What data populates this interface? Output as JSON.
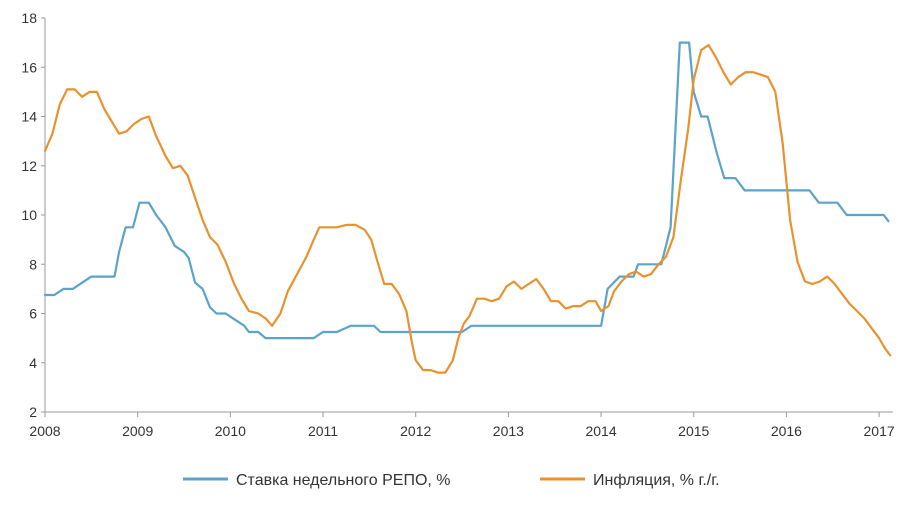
{
  "chart_data": {
    "type": "line",
    "title": "",
    "xlabel": "",
    "ylabel": "",
    "xlim": [
      2008,
      2017.15
    ],
    "ylim": [
      2,
      18
    ],
    "xticks": [
      "2008",
      "2009",
      "2010",
      "2011",
      "2012",
      "2013",
      "2014",
      "2015",
      "2016",
      "2017"
    ],
    "yticks": [
      "2",
      "4",
      "6",
      "8",
      "10",
      "12",
      "14",
      "16",
      "18"
    ],
    "grid": false,
    "legend_position": "bottom",
    "series": [
      {
        "name": "Ставка недельного РЕПО, %",
        "color": "#5ba3c9",
        "points": [
          [
            2008.0,
            6.75
          ],
          [
            2008.1,
            6.75
          ],
          [
            2008.2,
            7.0
          ],
          [
            2008.3,
            7.0
          ],
          [
            2008.4,
            7.25
          ],
          [
            2008.5,
            7.5
          ],
          [
            2008.6,
            7.5
          ],
          [
            2008.75,
            7.5
          ],
          [
            2008.8,
            8.5
          ],
          [
            2008.87,
            9.5
          ],
          [
            2008.95,
            9.5
          ],
          [
            2009.02,
            10.5
          ],
          [
            2009.12,
            10.5
          ],
          [
            2009.2,
            10.0
          ],
          [
            2009.3,
            9.5
          ],
          [
            2009.4,
            8.75
          ],
          [
            2009.5,
            8.5
          ],
          [
            2009.55,
            8.25
          ],
          [
            2009.62,
            7.25
          ],
          [
            2009.7,
            7.0
          ],
          [
            2009.78,
            6.25
          ],
          [
            2009.85,
            6.0
          ],
          [
            2009.95,
            6.0
          ],
          [
            2010.05,
            5.75
          ],
          [
            2010.15,
            5.5
          ],
          [
            2010.2,
            5.25
          ],
          [
            2010.3,
            5.25
          ],
          [
            2010.38,
            5.0
          ],
          [
            2010.9,
            5.0
          ],
          [
            2011.0,
            5.25
          ],
          [
            2011.15,
            5.25
          ],
          [
            2011.3,
            5.5
          ],
          [
            2011.55,
            5.5
          ],
          [
            2011.62,
            5.25
          ],
          [
            2012.0,
            5.25
          ],
          [
            2012.5,
            5.25
          ],
          [
            2012.6,
            5.5
          ],
          [
            2014.0,
            5.5
          ],
          [
            2014.07,
            7.0
          ],
          [
            2014.2,
            7.5
          ],
          [
            2014.35,
            7.5
          ],
          [
            2014.4,
            8.0
          ],
          [
            2014.65,
            8.0
          ],
          [
            2014.75,
            9.5
          ],
          [
            2014.85,
            17.0
          ],
          [
            2014.95,
            17.0
          ],
          [
            2015.0,
            15.0
          ],
          [
            2015.08,
            14.0
          ],
          [
            2015.15,
            14.0
          ],
          [
            2015.25,
            12.5
          ],
          [
            2015.33,
            11.5
          ],
          [
            2015.45,
            11.5
          ],
          [
            2015.55,
            11.0
          ],
          [
            2016.25,
            11.0
          ],
          [
            2016.35,
            10.5
          ],
          [
            2016.55,
            10.5
          ],
          [
            2016.65,
            10.0
          ],
          [
            2017.05,
            10.0
          ],
          [
            2017.1,
            9.75
          ]
        ]
      },
      {
        "name": "Инфляция, % г./г.",
        "color": "#e8922e",
        "points": [
          [
            2008.0,
            12.6
          ],
          [
            2008.08,
            13.3
          ],
          [
            2008.16,
            14.5
          ],
          [
            2008.24,
            15.1
          ],
          [
            2008.32,
            15.1
          ],
          [
            2008.4,
            14.8
          ],
          [
            2008.48,
            15.0
          ],
          [
            2008.56,
            15.0
          ],
          [
            2008.64,
            14.3
          ],
          [
            2008.72,
            13.8
          ],
          [
            2008.8,
            13.3
          ],
          [
            2008.88,
            13.4
          ],
          [
            2008.96,
            13.7
          ],
          [
            2009.04,
            13.9
          ],
          [
            2009.12,
            14.0
          ],
          [
            2009.2,
            13.2
          ],
          [
            2009.3,
            12.4
          ],
          [
            2009.38,
            11.9
          ],
          [
            2009.46,
            12.0
          ],
          [
            2009.54,
            11.6
          ],
          [
            2009.62,
            10.7
          ],
          [
            2009.7,
            9.8
          ],
          [
            2009.78,
            9.1
          ],
          [
            2009.86,
            8.8
          ],
          [
            2009.95,
            8.1
          ],
          [
            2010.04,
            7.2
          ],
          [
            2010.12,
            6.6
          ],
          [
            2010.2,
            6.1
          ],
          [
            2010.3,
            6.0
          ],
          [
            2010.38,
            5.8
          ],
          [
            2010.45,
            5.5
          ],
          [
            2010.54,
            6.0
          ],
          [
            2010.62,
            6.9
          ],
          [
            2010.72,
            7.6
          ],
          [
            2010.82,
            8.3
          ],
          [
            2010.9,
            9.0
          ],
          [
            2010.96,
            9.5
          ],
          [
            2011.05,
            9.5
          ],
          [
            2011.15,
            9.5
          ],
          [
            2011.25,
            9.6
          ],
          [
            2011.35,
            9.6
          ],
          [
            2011.45,
            9.4
          ],
          [
            2011.52,
            9.0
          ],
          [
            2011.58,
            8.2
          ],
          [
            2011.66,
            7.2
          ],
          [
            2011.74,
            7.2
          ],
          [
            2011.82,
            6.8
          ],
          [
            2011.9,
            6.1
          ],
          [
            2011.96,
            4.8
          ],
          [
            2012.0,
            4.1
          ],
          [
            2012.08,
            3.7
          ],
          [
            2012.16,
            3.7
          ],
          [
            2012.24,
            3.6
          ],
          [
            2012.32,
            3.6
          ],
          [
            2012.4,
            4.1
          ],
          [
            2012.46,
            5.0
          ],
          [
            2012.52,
            5.6
          ],
          [
            2012.58,
            5.9
          ],
          [
            2012.66,
            6.6
          ],
          [
            2012.74,
            6.6
          ],
          [
            2012.82,
            6.5
          ],
          [
            2012.9,
            6.6
          ],
          [
            2012.98,
            7.1
          ],
          [
            2013.06,
            7.3
          ],
          [
            2013.14,
            7.0
          ],
          [
            2013.22,
            7.2
          ],
          [
            2013.3,
            7.4
          ],
          [
            2013.38,
            7.0
          ],
          [
            2013.46,
            6.5
          ],
          [
            2013.54,
            6.5
          ],
          [
            2013.62,
            6.2
          ],
          [
            2013.7,
            6.3
          ],
          [
            2013.78,
            6.3
          ],
          [
            2013.86,
            6.5
          ],
          [
            2013.94,
            6.5
          ],
          [
            2014.0,
            6.1
          ],
          [
            2014.08,
            6.3
          ],
          [
            2014.14,
            6.9
          ],
          [
            2014.22,
            7.3
          ],
          [
            2014.3,
            7.6
          ],
          [
            2014.38,
            7.7
          ],
          [
            2014.46,
            7.5
          ],
          [
            2014.54,
            7.6
          ],
          [
            2014.62,
            8.0
          ],
          [
            2014.7,
            8.3
          ],
          [
            2014.78,
            9.1
          ],
          [
            2014.86,
            11.4
          ],
          [
            2014.94,
            13.5
          ],
          [
            2015.0,
            15.5
          ],
          [
            2015.08,
            16.7
          ],
          [
            2015.16,
            16.9
          ],
          [
            2015.24,
            16.4
          ],
          [
            2015.32,
            15.8
          ],
          [
            2015.4,
            15.3
          ],
          [
            2015.48,
            15.6
          ],
          [
            2015.56,
            15.8
          ],
          [
            2015.64,
            15.8
          ],
          [
            2015.72,
            15.7
          ],
          [
            2015.8,
            15.6
          ],
          [
            2015.88,
            15.0
          ],
          [
            2015.96,
            12.9
          ],
          [
            2016.04,
            9.8
          ],
          [
            2016.12,
            8.1
          ],
          [
            2016.2,
            7.3
          ],
          [
            2016.28,
            7.2
          ],
          [
            2016.36,
            7.3
          ],
          [
            2016.44,
            7.5
          ],
          [
            2016.52,
            7.2
          ],
          [
            2016.6,
            6.8
          ],
          [
            2016.68,
            6.4
          ],
          [
            2016.76,
            6.1
          ],
          [
            2016.84,
            5.8
          ],
          [
            2016.92,
            5.4
          ],
          [
            2017.0,
            5.0
          ],
          [
            2017.06,
            4.6
          ],
          [
            2017.12,
            4.3
          ]
        ]
      }
    ]
  }
}
